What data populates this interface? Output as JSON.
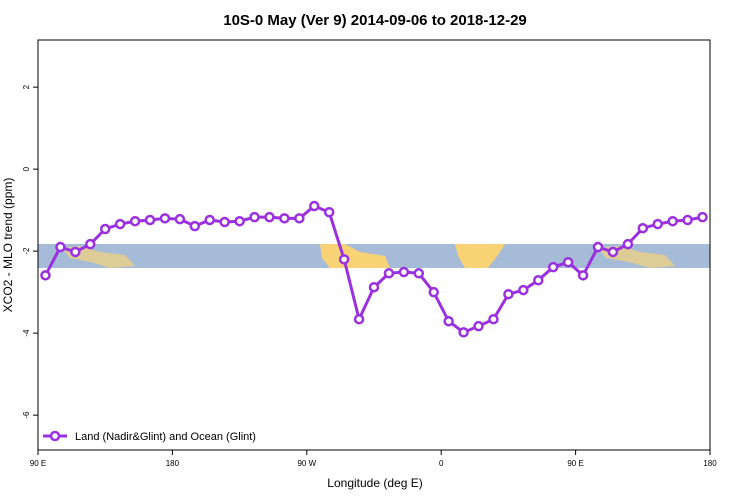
{
  "chart_data": {
    "type": "line",
    "title": "10S-0 May (Ver 9)   2014-09-06 to 2018-12-29",
    "xlabel": "Longitude (deg E)",
    "ylabel": "XCO2 - MLO trend (ppm)",
    "xlim": [
      90,
      540
    ],
    "ylim": [
      -6.85,
      3.15
    ],
    "xticks": [
      {
        "value": 90,
        "label": "90 E"
      },
      180,
      {
        "value": 270,
        "label": "90 W"
      },
      {
        "value": 360,
        "label": "0"
      },
      {
        "value": 450,
        "label": "90 E"
      },
      {
        "value": 540,
        "label": "180"
      }
    ],
    "yticks": [
      -6,
      -4,
      -2,
      0,
      2
    ],
    "legend": "bottom-left",
    "x": [
      95,
      105,
      115,
      125,
      135,
      145,
      155,
      165,
      175,
      185,
      195,
      205,
      215,
      225,
      235,
      245,
      255,
      265,
      275,
      285,
      295,
      305,
      315,
      325,
      335,
      345,
      355,
      365,
      375,
      385,
      395,
      405,
      415,
      425,
      435,
      445,
      455,
      465,
      475,
      485,
      495,
      505,
      515,
      525,
      535
    ],
    "series": [
      {
        "name": "Land (Nadir&Glint) and Ocean (Glint)",
        "color": "#9b30e0",
        "values": [
          -2.59,
          -1.9,
          -2.02,
          -1.83,
          -1.46,
          -1.34,
          -1.27,
          -1.24,
          -1.2,
          -1.22,
          -1.39,
          -1.24,
          -1.29,
          -1.27,
          -1.17,
          -1.17,
          -1.2,
          -1.2,
          -0.9,
          -1.05,
          -2.2,
          -3.66,
          -2.88,
          -2.54,
          -2.51,
          -2.54,
          -3.0,
          -3.71,
          -3.98,
          -3.83,
          -3.66,
          -3.05,
          -2.95,
          -2.71,
          -2.39,
          -2.27,
          -2.59,
          -1.9,
          -2.02,
          -1.83,
          -1.44,
          -1.34,
          -1.27,
          -1.24,
          -1.17
        ]
      }
    ]
  }
}
